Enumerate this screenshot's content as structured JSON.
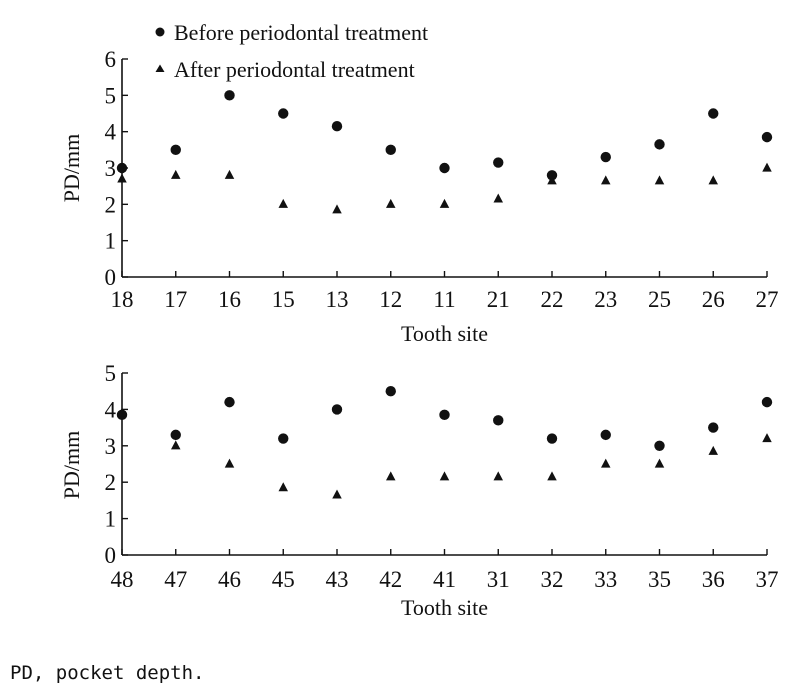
{
  "chart_data": [
    {
      "type": "scatter",
      "categories": [
        "18",
        "17",
        "16",
        "15",
        "13",
        "12",
        "11",
        "21",
        "22",
        "23",
        "25",
        "26",
        "27"
      ],
      "xlabel": "Tooth site",
      "ylabel": "PD/mm",
      "ylim": [
        0,
        6
      ],
      "yticks": [
        0,
        1,
        2,
        3,
        4,
        5,
        6
      ],
      "grid": false,
      "legend": {
        "position": "top-left",
        "entries": [
          {
            "label": "Before periodontal treatment",
            "marker": "circle"
          },
          {
            "label": "After periodontal treatment",
            "marker": "triangle"
          }
        ]
      },
      "series": [
        {
          "name": "Before periodontal treatment",
          "marker": "circle",
          "values": [
            3.0,
            3.5,
            5.0,
            4.5,
            4.15,
            3.5,
            3.0,
            3.15,
            2.8,
            3.3,
            3.65,
            4.5,
            3.85
          ]
        },
        {
          "name": "After periodontal treatment",
          "marker": "triangle",
          "values": [
            2.7,
            2.8,
            2.8,
            2.0,
            1.85,
            2.0,
            2.0,
            2.15,
            2.65,
            2.65,
            2.65,
            2.65,
            3.0
          ]
        }
      ]
    },
    {
      "type": "scatter",
      "categories": [
        "48",
        "47",
        "46",
        "45",
        "43",
        "42",
        "41",
        "31",
        "32",
        "33",
        "35",
        "36",
        "37"
      ],
      "xlabel": "Tooth site",
      "ylabel": "PD/mm",
      "ylim": [
        0,
        5
      ],
      "yticks": [
        0,
        1,
        2,
        3,
        4,
        5
      ],
      "grid": false,
      "series": [
        {
          "name": "Before periodontal treatment",
          "marker": "circle",
          "values": [
            3.85,
            3.3,
            4.2,
            3.2,
            4.0,
            4.5,
            3.85,
            3.7,
            3.2,
            3.3,
            3.0,
            3.5,
            4.2
          ]
        },
        {
          "name": "After periodontal treatment",
          "marker": "triangle",
          "values": [
            3.9,
            3.0,
            2.5,
            1.85,
            1.65,
            2.15,
            2.15,
            2.15,
            2.15,
            2.5,
            2.5,
            2.85,
            3.2
          ]
        }
      ]
    }
  ],
  "footnote": "PD, pocket depth."
}
